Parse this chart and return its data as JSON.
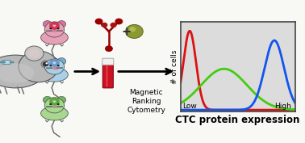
{
  "background_color": "#f8f8f5",
  "chart_bg": "#dcdcdc",
  "chart_border": "#444444",
  "xlabel": "CTC protein expression",
  "ylabel": "# of cells",
  "x_low_label": "Low",
  "x_high_label": "High",
  "red_curve": {
    "mean": 0.08,
    "std": 0.055,
    "amplitude": 1.0,
    "color": "#dd1111"
  },
  "green_curve": {
    "mean": 0.38,
    "std": 0.2,
    "amplitude": 0.52,
    "color": "#44cc11"
  },
  "blue_curve": {
    "mean": 0.82,
    "std": 0.085,
    "amplitude": 0.88,
    "color": "#1155ee"
  },
  "arrow_color": "#111111",
  "label_magnetic": "Magnetic\nRanking\nCytometry",
  "label_fontsize": 6.5,
  "axis_label_fontsize": 6.5,
  "xlabel_fontsize": 8.5,
  "ylabel_fontsize": 6.5
}
